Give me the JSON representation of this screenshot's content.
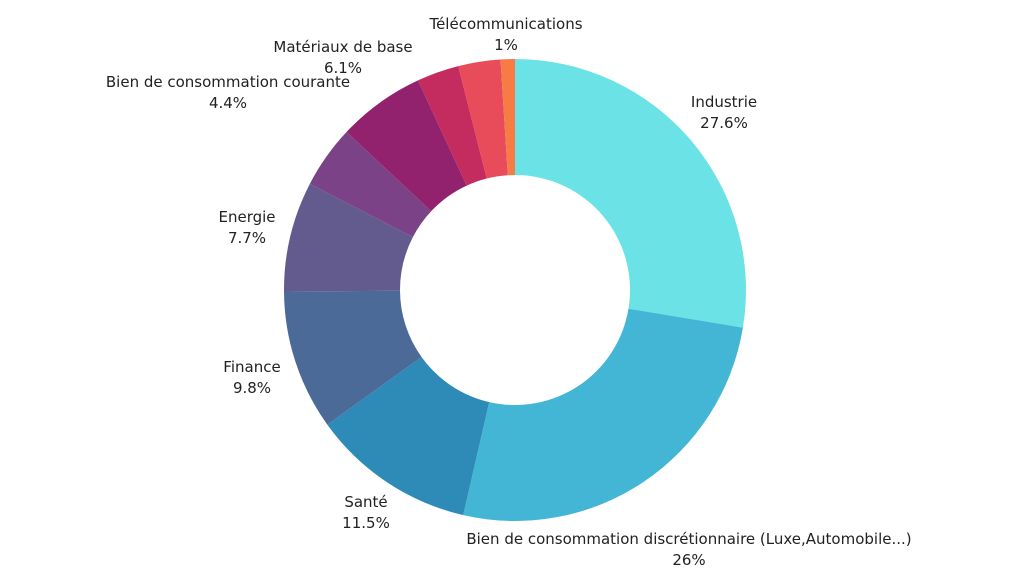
{
  "chart_data": {
    "type": "pie",
    "variant": "donut",
    "title": "",
    "start": "top, clockwise",
    "slices": [
      {
        "label": "Industrie",
        "value": 27.6,
        "value_label": "27.6%",
        "color": "#6be3e6"
      },
      {
        "label": "Bien de consommation discrétionnaire (Luxe,Automobile...)",
        "value": 26,
        "value_label": "26%",
        "color": "#43b6d6"
      },
      {
        "label": "Santé",
        "value": 11.5,
        "value_label": "11.5%",
        "color": "#2e8bb8"
      },
      {
        "label": "Finance",
        "value": 9.8,
        "value_label": "9.8%",
        "color": "#4b6a98"
      },
      {
        "label": "Energie",
        "value": 7.7,
        "value_label": "7.7%",
        "color": "#635a8e"
      },
      {
        "label": "Bien de consommation courante",
        "value": 4.4,
        "value_label": "4.4%",
        "color": "#7c4287"
      },
      {
        "label": "Matériaux de base",
        "value": 6.1,
        "value_label": "6.1%",
        "color": "#93226e"
      },
      {
        "label": null,
        "value": 2.95,
        "value_label": null,
        "color": "#c42b5e"
      },
      {
        "label": null,
        "value": 2.95,
        "value_label": null,
        "color": "#e84c5a"
      },
      {
        "label": "Télécommunications",
        "value": 1,
        "value_label": "1%",
        "color": "#f77b45"
      }
    ]
  }
}
